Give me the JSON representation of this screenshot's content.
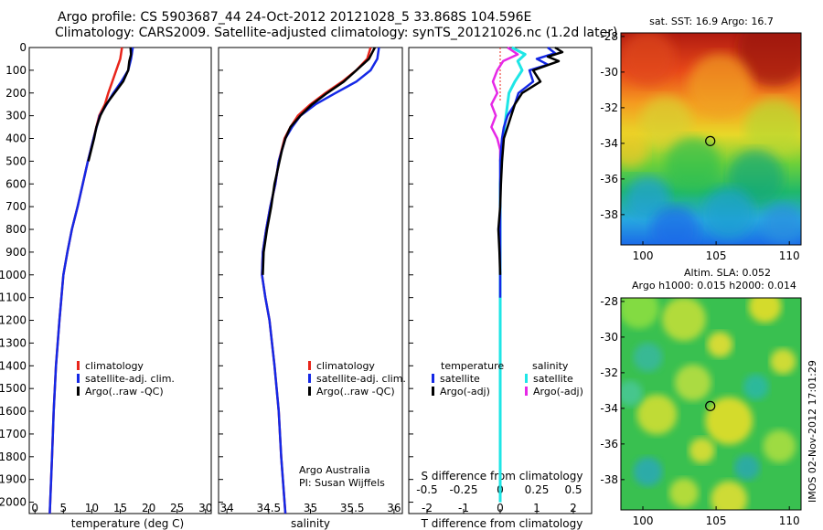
{
  "header": {
    "title_line1": "Argo profile: CS 5903687_44 24-Oct-2012 20121028_5 33.868S 104.596E",
    "title_line2": "Climatology: CARS2009. Satellite-adjusted climatology: synTS_20121026.nc (1.2d later)"
  },
  "colors": {
    "climatology": "#e8251b",
    "satellite": "#1428e6",
    "argo": "#000000",
    "sat_s": "#1ee6e6",
    "argo_s": "#e628e6"
  },
  "stamp": "IMOS 02-Nov-2012 17:01:29",
  "chart_data": [
    {
      "id": "temperature",
      "type": "line",
      "xlabel": "temperature (deg C)",
      "xlim": [
        -1,
        31
      ],
      "xticks": [
        0,
        5,
        10,
        15,
        20,
        25,
        30
      ],
      "ylim": [
        2050,
        0
      ],
      "yticks": [
        0,
        100,
        200,
        300,
        400,
        500,
        600,
        700,
        800,
        900,
        1000,
        1100,
        1200,
        1300,
        1400,
        1500,
        1600,
        1700,
        1800,
        1900,
        2000
      ],
      "legend": [
        "climatology",
        "satellite-adj. clim.",
        "Argo(..raw -QC)"
      ],
      "series": [
        {
          "name": "climatology",
          "depth": [
            0,
            50,
            100,
            150,
            200,
            250,
            300,
            400,
            500,
            600,
            700,
            800,
            900,
            1000,
            1200,
            1400,
            1600,
            1800,
            2050
          ],
          "values": [
            15.3,
            15.0,
            14.3,
            13.6,
            12.9,
            12.3,
            11.3,
            10.3,
            9.3,
            8.4,
            7.5,
            6.5,
            5.7,
            5.0,
            4.3,
            3.7,
            3.3,
            3.0,
            2.6
          ]
        },
        {
          "name": "satellite-adj. clim.",
          "depth": [
            0,
            50,
            100,
            150,
            200,
            250,
            300,
            400,
            500,
            600,
            700,
            800,
            900,
            1000,
            1200,
            1400,
            1600,
            1800,
            2050
          ],
          "values": [
            17.2,
            16.9,
            16.4,
            15.2,
            13.8,
            12.6,
            11.4,
            10.3,
            9.3,
            8.4,
            7.5,
            6.5,
            5.7,
            5.0,
            4.3,
            3.7,
            3.3,
            3.0,
            2.6
          ]
        },
        {
          "name": "Argo(..raw -QC)",
          "depth": [
            0,
            30,
            60,
            100,
            150,
            200,
            250,
            300,
            350,
            400,
            500
          ],
          "values": [
            16.8,
            16.9,
            16.6,
            16.4,
            15.5,
            14.0,
            12.5,
            11.5,
            10.8,
            10.4,
            9.4
          ]
        }
      ]
    },
    {
      "id": "salinity",
      "type": "line",
      "xlabel": "salinity",
      "xlim": [
        33.9,
        36.1
      ],
      "xticks": [
        34,
        34.5,
        35,
        35.5,
        36
      ],
      "ylim": [
        2050,
        0
      ],
      "legend": [
        "climatology",
        "satellite-adj. clim.",
        "Argo(..raw -QC)"
      ],
      "annotation": [
        "Argo Australia",
        "PI: Susan Wijffels"
      ],
      "series": [
        {
          "name": "climatology",
          "depth": [
            0,
            50,
            100,
            150,
            200,
            250,
            300,
            350,
            400,
            500,
            600,
            700,
            800,
            900,
            1000,
            1100,
            1200,
            1400,
            1600,
            1800,
            2050
          ],
          "values": [
            35.72,
            35.68,
            35.55,
            35.38,
            35.18,
            35.0,
            34.85,
            34.76,
            34.69,
            34.62,
            34.58,
            34.52,
            34.47,
            34.43,
            34.42,
            34.46,
            34.51,
            34.57,
            34.62,
            34.65,
            34.7
          ]
        },
        {
          "name": "satellite-adj. clim.",
          "depth": [
            0,
            50,
            100,
            150,
            200,
            250,
            300,
            350,
            400,
            500,
            600,
            700,
            800,
            900,
            1000,
            1100,
            1200,
            1400,
            1600,
            1800,
            2050
          ],
          "values": [
            35.82,
            35.8,
            35.72,
            35.55,
            35.3,
            35.06,
            34.88,
            34.78,
            34.7,
            34.62,
            34.58,
            34.52,
            34.47,
            34.43,
            34.42,
            34.46,
            34.51,
            34.57,
            34.62,
            34.65,
            34.7
          ]
        },
        {
          "name": "Argo(..raw -QC)",
          "depth": [
            0,
            50,
            100,
            150,
            200,
            250,
            300,
            350,
            400,
            450,
            500,
            600,
            700,
            800,
            900,
            1000
          ],
          "values": [
            35.77,
            35.7,
            35.55,
            35.4,
            35.2,
            35.02,
            34.88,
            34.76,
            34.7,
            34.66,
            34.63,
            34.57,
            34.53,
            34.48,
            34.44,
            34.43
          ]
        }
      ]
    },
    {
      "id": "difference",
      "type": "line",
      "xlabel": "T difference from climatology",
      "xlabel2": "S difference from climatology",
      "xlim": [
        -2.5,
        2.5
      ],
      "xticks": [
        -2,
        -1,
        0,
        1,
        2
      ],
      "sticks": [
        -0.5,
        -0.25,
        0,
        0.25,
        0.5
      ],
      "stick_labels": [
        "-0.5",
        "-0.25",
        "0",
        "0.25",
        "0.5"
      ],
      "ylim": [
        2050,
        0
      ],
      "legend_titles": [
        "temperature",
        "salinity"
      ],
      "legend": [
        "satellite",
        "Argo(-adj)",
        "satellite",
        "Argo(-adj)"
      ],
      "series": [
        {
          "name": "temperature satellite",
          "depth": [
            0,
            25,
            50,
            75,
            100,
            150,
            200,
            250,
            300,
            350,
            400,
            500,
            600,
            800,
            1000,
            1100
          ],
          "values": [
            1.3,
            1.5,
            1.0,
            1.3,
            0.8,
            0.9,
            0.5,
            0.4,
            0.2,
            0.1,
            0.05,
            0.0,
            0.0,
            0.0,
            0.0,
            0.0
          ]
        },
        {
          "name": "temperature Argo(-adj)",
          "depth": [
            0,
            20,
            40,
            60,
            100,
            150,
            200,
            250,
            300,
            350,
            400,
            500,
            600,
            700,
            800,
            900,
            1000
          ],
          "values": [
            1.5,
            1.7,
            1.3,
            1.6,
            0.9,
            1.1,
            0.6,
            0.4,
            0.3,
            0.2,
            0.1,
            0.05,
            0.02,
            0.0,
            -0.05,
            -0.02,
            0.0
          ]
        },
        {
          "name": "salinity satellite",
          "depth": [
            0,
            30,
            60,
            100,
            150,
            200,
            300,
            400,
            600,
            1000,
            1500,
            2000
          ],
          "values": [
            0.08,
            0.17,
            0.12,
            0.15,
            0.1,
            0.06,
            0.04,
            0.02,
            0.0,
            0.0,
            0.0,
            0.0
          ]
        },
        {
          "name": "salinity Argo(-adj)",
          "depth": [
            0,
            30,
            60,
            100,
            150,
            200,
            250,
            300,
            350,
            400,
            450,
            500
          ],
          "values": [
            0.05,
            0.12,
            0.02,
            -0.02,
            -0.05,
            -0.02,
            -0.06,
            -0.03,
            -0.06,
            -0.02,
            0.0,
            0.0
          ]
        }
      ]
    },
    {
      "id": "sst_map",
      "type": "heatmap",
      "title": "sat. SST: 16.9  Argo: 16.7",
      "xticks": [
        100,
        105,
        110
      ],
      "yticks": [
        -28,
        -30,
        -32,
        -34,
        -36,
        -38
      ],
      "xlim": [
        98.5,
        110.8
      ],
      "ylim": [
        -39.7,
        -27.8
      ],
      "marker": {
        "lon": 104.6,
        "lat": -33.87
      }
    },
    {
      "id": "sla_map",
      "type": "heatmap",
      "title1": "Altim. SLA: 0.052",
      "title2": "Argo h1000: 0.015  h2000: 0.014",
      "xticks": [
        100,
        105,
        110
      ],
      "yticks": [
        -28,
        -30,
        -32,
        -34,
        -36,
        -38
      ],
      "xlim": [
        98.5,
        110.8
      ],
      "ylim": [
        -39.7,
        -27.8
      ],
      "marker": {
        "lon": 104.6,
        "lat": -33.87
      }
    }
  ]
}
